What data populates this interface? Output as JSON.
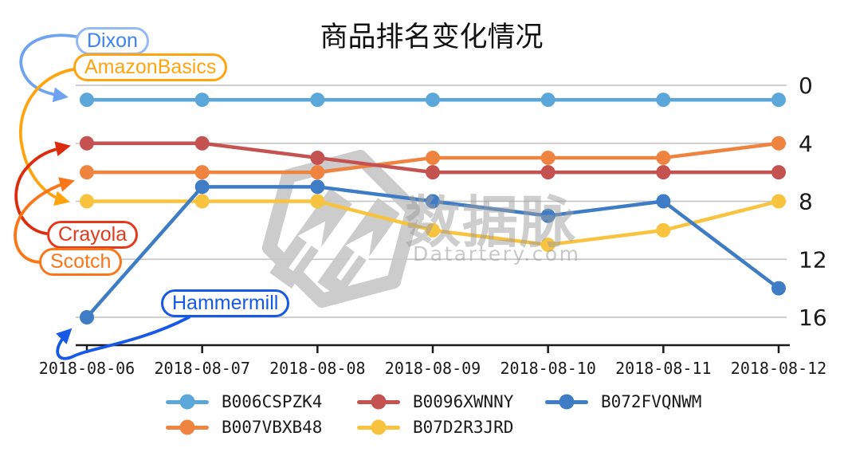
{
  "title": "商品排名变化情况",
  "watermark": {
    "logo_text": "数据脉",
    "site": "Datartery.com"
  },
  "chart_data": {
    "type": "line",
    "title": "商品排名变化情况",
    "x": [
      "2018-08-06",
      "2018-08-07",
      "2018-08-08",
      "2018-08-09",
      "2018-08-10",
      "2018-08-11",
      "2018-08-12"
    ],
    "xlabel": "",
    "ylabel": "",
    "y_ticks": [
      0,
      4,
      8,
      12,
      16
    ],
    "y_axis_side": "right",
    "y_inverted": true,
    "ylim": [
      0,
      17
    ],
    "grid": "horizontal",
    "legend_position": "bottom",
    "series": [
      {
        "name": "B006CSPZK4",
        "color": "#5BA7D9",
        "values": [
          1,
          1,
          1,
          1,
          1,
          1,
          1
        ]
      },
      {
        "name": "B007VBXB48",
        "color": "#EE8440",
        "values": [
          6,
          6,
          6,
          5,
          5,
          5,
          4
        ]
      },
      {
        "name": "B0096XWNNY",
        "color": "#C35250",
        "values": [
          4,
          4,
          5,
          6,
          6,
          6,
          6
        ]
      },
      {
        "name": "B07D2R3JRD",
        "color": "#F8C33E",
        "values": [
          8,
          8,
          8,
          10,
          11,
          10,
          8
        ]
      },
      {
        "name": "B072FVQNWM",
        "color": "#3E7DC5",
        "values": [
          16,
          7,
          7,
          8,
          9,
          8,
          14
        ]
      }
    ],
    "legend_display_order": [
      "B006CSPZK4",
      "B0096XWNNY",
      "B072FVQNWM",
      "B007VBXB48",
      "B07D2R3JRD"
    ]
  },
  "annotations": [
    {
      "id": "dixon",
      "label": "Dixon",
      "series": "B006CSPZK4",
      "color": "#3C82F6",
      "border_color": "#93B9F6",
      "arrow_color": "#6FA3F2"
    },
    {
      "id": "amazonbasics",
      "label": "AmazonBasics",
      "series": "B07D2R3JRD",
      "color": "#FFA40F",
      "border_color": "#FFA40F",
      "arrow_color": "#FFA40F"
    },
    {
      "id": "crayola",
      "label": "Crayola",
      "series": "B0096XWNNY",
      "color": "#E5391D",
      "border_color": "#E5391D",
      "arrow_color": "#DD2B0E"
    },
    {
      "id": "scotch",
      "label": "Scotch",
      "series": "B007VBXB48",
      "color": "#FA7618",
      "border_color": "#FA7618",
      "arrow_color": "#FA7618"
    },
    {
      "id": "hammermill",
      "label": "Hammermill",
      "series": "B072FVQNWM",
      "color": "#1659E6",
      "border_color": "#1659E6",
      "arrow_color": "#1659E6"
    }
  ]
}
